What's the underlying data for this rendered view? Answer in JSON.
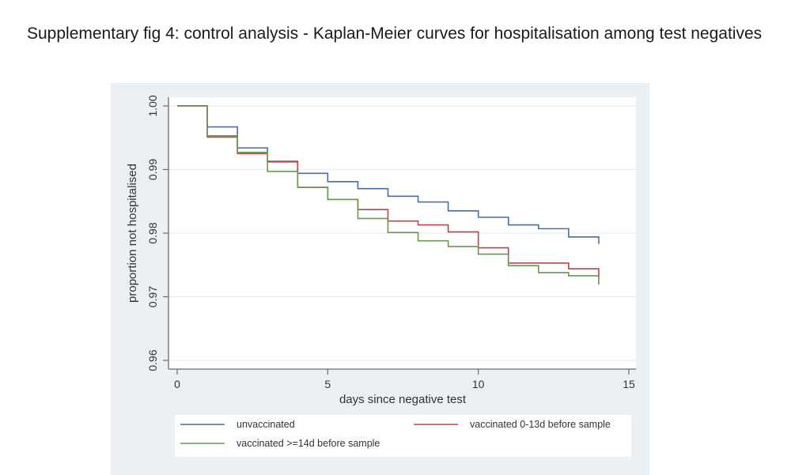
{
  "document": {
    "title": "Supplementary fig 4: control analysis - Kaplan-Meier curves for hospitalisation among test negatives"
  },
  "chart_data": {
    "type": "line",
    "subtype": "step",
    "title": "",
    "xlabel": "days since negative test",
    "ylabel": "proportion not hospitalised",
    "xlim": [
      0,
      15
    ],
    "ylim": [
      0.96,
      1.0
    ],
    "xticks": [
      0,
      5,
      10,
      15
    ],
    "xtick_labels": [
      "0",
      "5",
      "10",
      "15"
    ],
    "yticks": [
      0.96,
      0.97,
      0.98,
      0.99,
      1.0
    ],
    "ytick_labels": [
      "0.96",
      "0.97",
      "0.98",
      "0.99",
      "1.00"
    ],
    "grid": "horizontal",
    "legend_position": "bottom",
    "x": [
      0,
      1,
      2,
      3,
      4,
      5,
      6,
      7,
      8,
      9,
      10,
      11,
      12,
      13,
      14
    ],
    "series": [
      {
        "name": "unvaccinated",
        "color": "#4a6f9c",
        "values": [
          1.0,
          0.9967,
          0.9934,
          0.9912,
          0.9894,
          0.9881,
          0.987,
          0.9858,
          0.9849,
          0.9835,
          0.9825,
          0.9813,
          0.9807,
          0.9794,
          0.9788
        ]
      },
      {
        "name": "vaccinated 0-13d before sample",
        "color": "#b5484f",
        "values": [
          1.0,
          0.9951,
          0.9925,
          0.9913,
          0.9872,
          0.9853,
          0.9837,
          0.9819,
          0.9813,
          0.9802,
          0.9777,
          0.9753,
          0.9753,
          0.9744,
          0.9734
        ]
      },
      {
        "name": "vaccinated >=14d before sample",
        "color": "#6f9454",
        "values": [
          1.0,
          0.9953,
          0.9927,
          0.9897,
          0.9872,
          0.9853,
          0.9823,
          0.9801,
          0.9788,
          0.9779,
          0.9767,
          0.9749,
          0.9738,
          0.9733,
          0.9724
        ]
      }
    ]
  }
}
